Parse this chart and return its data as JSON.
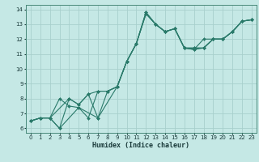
{
  "xlabel": "Humidex (Indice chaleur)",
  "bg_color": "#c5e8e5",
  "grid_color": "#a8d0cc",
  "line_color": "#2a7a6a",
  "xlim": [
    -0.5,
    23.5
  ],
  "ylim": [
    5.7,
    14.3
  ],
  "xticks": [
    0,
    1,
    2,
    3,
    4,
    5,
    6,
    7,
    8,
    9,
    10,
    11,
    12,
    13,
    14,
    15,
    16,
    17,
    18,
    19,
    20,
    21,
    22,
    23
  ],
  "yticks": [
    6,
    7,
    8,
    9,
    10,
    11,
    12,
    13,
    14
  ],
  "line1_x": [
    0,
    1,
    2,
    3,
    4,
    5,
    6,
    7,
    8,
    9,
    10,
    11,
    12,
    13,
    14,
    15,
    16,
    17,
    18,
    19,
    20,
    21,
    22,
    23
  ],
  "line1_y": [
    6.5,
    6.7,
    6.7,
    6.0,
    8.0,
    7.6,
    8.3,
    6.7,
    8.5,
    8.8,
    10.5,
    11.7,
    13.8,
    13.0,
    12.5,
    12.7,
    11.4,
    11.3,
    12.0,
    12.0,
    12.0,
    12.5,
    13.2,
    13.3
  ],
  "line2_x": [
    0,
    1,
    2,
    3,
    4,
    5,
    6,
    7,
    8,
    9,
    10,
    11,
    12,
    13,
    14,
    15,
    16,
    17,
    18,
    19,
    20,
    21,
    22,
    23
  ],
  "line2_y": [
    6.5,
    6.7,
    6.7,
    8.0,
    7.5,
    7.4,
    6.7,
    8.5,
    8.5,
    8.8,
    10.5,
    11.7,
    13.7,
    13.0,
    12.5,
    12.7,
    11.4,
    11.4,
    11.4,
    12.0,
    12.0,
    12.5,
    13.2,
    13.3
  ],
  "line3_x": [
    0,
    1,
    2,
    3,
    5,
    7,
    9,
    10,
    11,
    12,
    13,
    14,
    15,
    16,
    17,
    18,
    19,
    20,
    21,
    22,
    23
  ],
  "line3_y": [
    6.5,
    6.7,
    6.7,
    6.0,
    7.4,
    6.7,
    8.8,
    10.5,
    11.7,
    13.8,
    13.0,
    12.5,
    12.7,
    11.4,
    11.3,
    11.4,
    12.0,
    12.0,
    12.5,
    13.2,
    13.3
  ],
  "line4_x": [
    0,
    1,
    2,
    4,
    5,
    6,
    7,
    8,
    9,
    10,
    11,
    12,
    13,
    14,
    15,
    16,
    17,
    18,
    19,
    20,
    21,
    22,
    23
  ],
  "line4_y": [
    6.5,
    6.7,
    6.7,
    8.0,
    7.6,
    8.3,
    8.5,
    8.5,
    8.8,
    10.5,
    11.7,
    13.7,
    13.0,
    12.5,
    12.7,
    11.4,
    11.4,
    11.4,
    12.0,
    12.0,
    12.5,
    13.2,
    13.3
  ]
}
